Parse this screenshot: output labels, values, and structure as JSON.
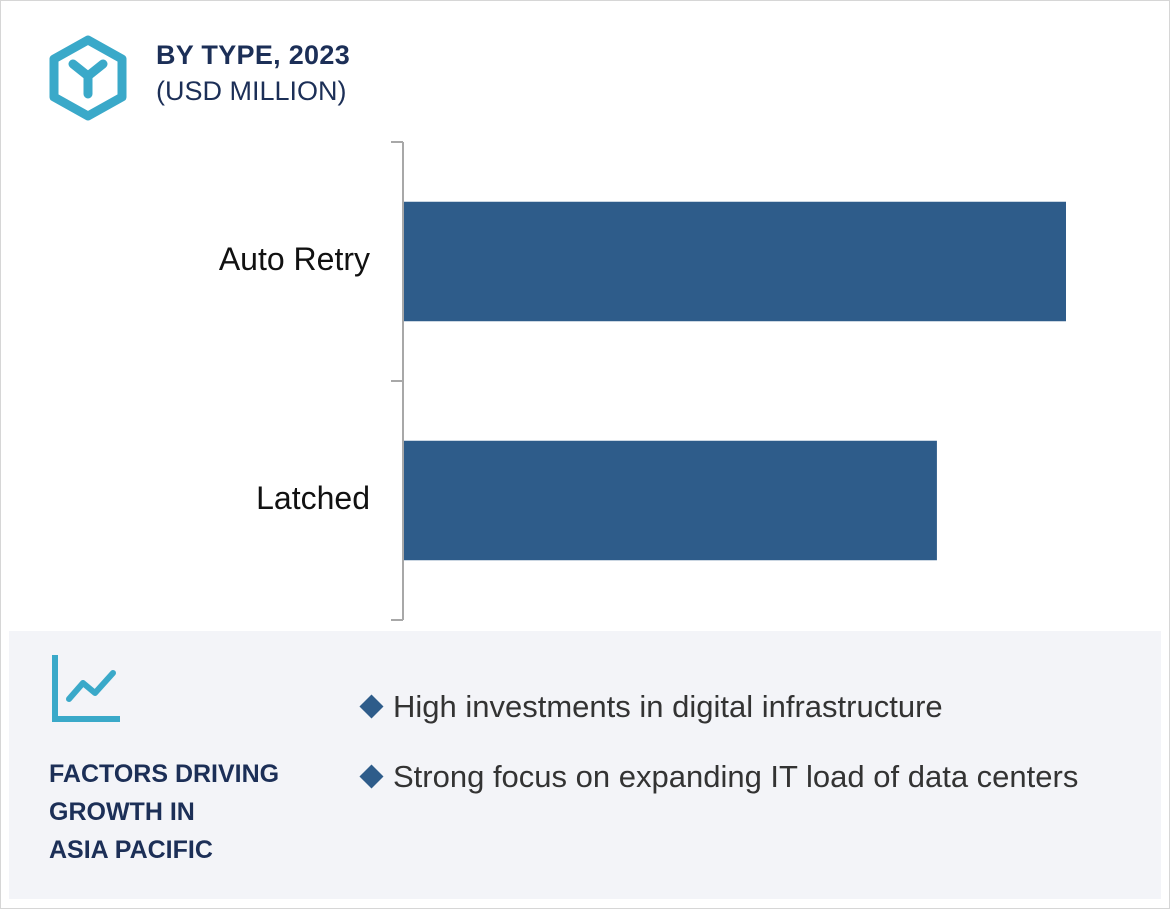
{
  "header": {
    "title": "BY TYPE, 2023",
    "subtitle": "(USD MILLION)"
  },
  "colors": {
    "bar": "#2e5c8a",
    "title": "#1c2f57",
    "accent": "#3aa9c9",
    "panel_bg": "#f3f4f8"
  },
  "icons": {
    "logo": "hexagon-y-logo-icon",
    "trend": "line-chart-icon",
    "bullet": "diamond-bullet-icon"
  },
  "chart_data": {
    "type": "bar",
    "orientation": "horizontal",
    "categories": [
      "Auto Retry",
      "Latched"
    ],
    "values": [
      100,
      80.5
    ],
    "title": "BY TYPE, 2023",
    "subtitle": "(USD MILLION)",
    "xlabel": "",
    "ylabel": "",
    "xlim": [
      0,
      100
    ],
    "grid": false,
    "legend": "none"
  },
  "factors": {
    "title": "FACTORS DRIVING GROWTH IN ASIA PACIFIC",
    "title_lines": [
      "FACTORS DRIVING",
      "GROWTH IN",
      "ASIA PACIFIC"
    ],
    "items": [
      "High investments in digital infrastructure",
      "Strong focus on expanding IT load of data centers"
    ]
  }
}
